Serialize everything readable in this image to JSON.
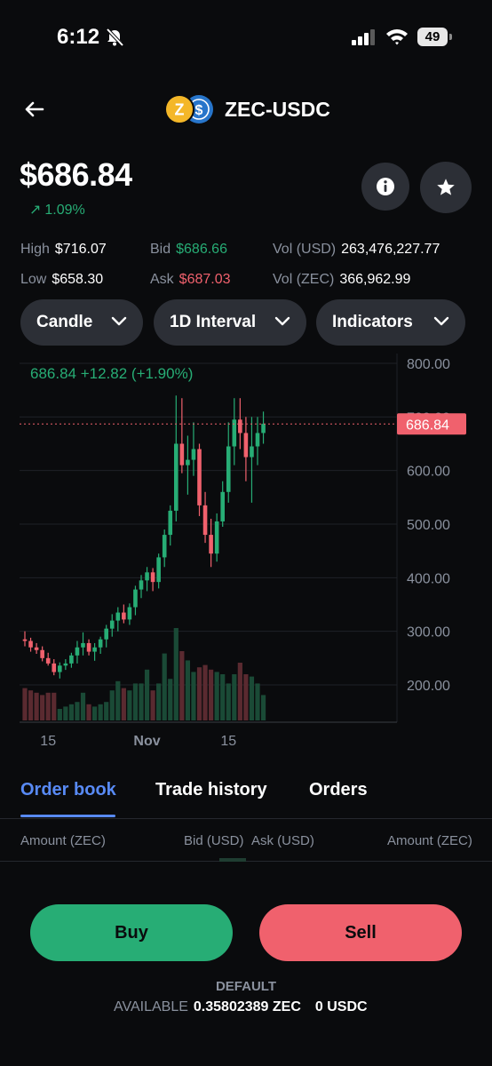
{
  "status": {
    "time": "6:12",
    "battery": "49"
  },
  "header": {
    "title": "ZEC-USDC",
    "base_icon": "zcash-logo-icon",
    "quote_icon": "usdc-logo-icon"
  },
  "price": {
    "current": "$686.84",
    "change": "1.09%"
  },
  "stats": {
    "high_label": "High",
    "high": "$716.07",
    "low_label": "Low",
    "low": "$658.30",
    "bid_label": "Bid",
    "bid": "$686.66",
    "ask_label": "Ask",
    "ask": "$687.03",
    "vol_usd_label": "Vol (USD)",
    "vol_usd": "263,476,227.77",
    "vol_zec_label": "Vol (ZEC)",
    "vol_zec": "366,962.99"
  },
  "controls": {
    "chart_type": "Candle",
    "interval": "1D Interval",
    "indicators": "Indicators"
  },
  "chart_data": {
    "type": "candlestick",
    "legend": {
      "price": "686.84",
      "change": "+12.82 (+1.90%)"
    },
    "current_price_label": "686.84",
    "current_price": 686.84,
    "y_ticks": [
      "800.00",
      "700.00",
      "600.00",
      "500.00",
      "400.00",
      "300.00",
      "200.00"
    ],
    "y_tick_values": [
      800,
      700,
      600,
      500,
      400,
      300,
      200
    ],
    "ylim": [
      135,
      810
    ],
    "x_ticks": [
      {
        "label": "15",
        "index": 4
      },
      {
        "label": "Nov",
        "index": 21
      },
      {
        "label": "15",
        "index": 35
      }
    ],
    "candles": [
      [
        285,
        300,
        272,
        282
      ],
      [
        282,
        288,
        262,
        270
      ],
      [
        270,
        278,
        258,
        265
      ],
      [
        265,
        272,
        244,
        250
      ],
      [
        250,
        260,
        236,
        240
      ],
      [
        240,
        248,
        218,
        224
      ],
      [
        224,
        242,
        212,
        236
      ],
      [
        236,
        248,
        228,
        240
      ],
      [
        240,
        260,
        232,
        255
      ],
      [
        255,
        282,
        240,
        270
      ],
      [
        270,
        298,
        255,
        278
      ],
      [
        278,
        285,
        255,
        262
      ],
      [
        262,
        278,
        245,
        270
      ],
      [
        270,
        290,
        258,
        285
      ],
      [
        285,
        312,
        270,
        305
      ],
      [
        305,
        332,
        290,
        320
      ],
      [
        320,
        345,
        300,
        335
      ],
      [
        335,
        350,
        315,
        322
      ],
      [
        322,
        352,
        312,
        345
      ],
      [
        345,
        385,
        330,
        378
      ],
      [
        378,
        405,
        362,
        395
      ],
      [
        395,
        420,
        375,
        410
      ],
      [
        410,
        418,
        375,
        392
      ],
      [
        392,
        445,
        380,
        438
      ],
      [
        438,
        490,
        420,
        480
      ],
      [
        480,
        535,
        460,
        525
      ],
      [
        525,
        740,
        505,
        650
      ],
      [
        650,
        735,
        595,
        610
      ],
      [
        610,
        665,
        555,
        620
      ],
      [
        620,
        690,
        590,
        640
      ],
      [
        640,
        650,
        515,
        535
      ],
      [
        535,
        560,
        465,
        480
      ],
      [
        480,
        510,
        420,
        445
      ],
      [
        445,
        520,
        430,
        505
      ],
      [
        505,
        580,
        495,
        560
      ],
      [
        560,
        690,
        540,
        645
      ],
      [
        645,
        735,
        610,
        695
      ],
      [
        695,
        735,
        640,
        670
      ],
      [
        670,
        700,
        580,
        625
      ],
      [
        625,
        700,
        540,
        645
      ],
      [
        645,
        700,
        610,
        670
      ],
      [
        670,
        710,
        650,
        687
      ]
    ],
    "volumes": [
      0.14,
      0.13,
      0.12,
      0.11,
      0.12,
      0.12,
      0.05,
      0.06,
      0.07,
      0.08,
      0.12,
      0.07,
      0.06,
      0.07,
      0.08,
      0.13,
      0.17,
      0.14,
      0.13,
      0.16,
      0.16,
      0.22,
      0.13,
      0.16,
      0.29,
      0.18,
      0.4,
      0.3,
      0.26,
      0.21,
      0.23,
      0.24,
      0.22,
      0.21,
      0.2,
      0.16,
      0.2,
      0.25,
      0.2,
      0.19,
      0.16,
      0.11
    ]
  },
  "tabs": [
    "Order book",
    "Trade history",
    "Orders"
  ],
  "orderbook_headers": {
    "amount_left": "Amount (ZEC)",
    "bid": "Bid (USD)",
    "ask": "Ask (USD)",
    "amount_right": "Amount (ZEC)"
  },
  "actions": {
    "buy": "Buy",
    "sell": "Sell"
  },
  "footer": {
    "portfolio": "DEFAULT",
    "available_label": "AVAILABLE",
    "zec_balance": "0.35802389 ZEC",
    "usdc_balance": "0 USDC"
  },
  "colors": {
    "up": "#27ad75",
    "down": "#f0616d",
    "accent": "#588af5"
  }
}
